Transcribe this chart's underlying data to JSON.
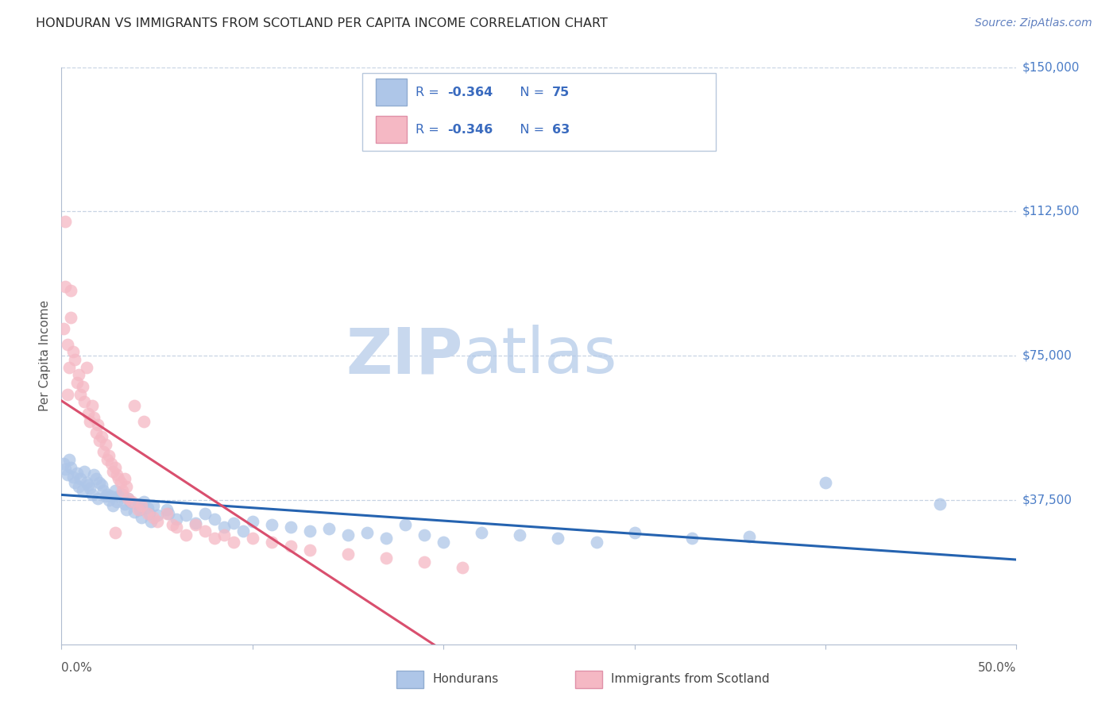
{
  "title": "HONDURAN VS IMMIGRANTS FROM SCOTLAND PER CAPITA INCOME CORRELATION CHART",
  "source": "Source: ZipAtlas.com",
  "ylabel": "Per Capita Income",
  "yticks": [
    0,
    37500,
    75000,
    112500,
    150000
  ],
  "ytick_labels": [
    "",
    "$37,500",
    "$75,000",
    "$112,500",
    "$150,000"
  ],
  "xlim": [
    0.0,
    0.5
  ],
  "ylim": [
    0,
    150000
  ],
  "blue_color": "#aec6e8",
  "pink_color": "#f5b8c4",
  "blue_line_color": "#2563b0",
  "pink_line_color": "#d94f6e",
  "watermark_color": "#dce8f5",
  "background_color": "#ffffff",
  "grid_color": "#c8d4e4",
  "title_color": "#2a2a2a",
  "axis_label_color": "#555555",
  "right_tick_color": "#4a7cc7",
  "legend_text_dark": "#333333",
  "legend_text_blue": "#3060c0",
  "legend_text_pink": "#c04060",
  "blue_scatter": [
    [
      0.001,
      47000
    ],
    [
      0.002,
      45500
    ],
    [
      0.003,
      44000
    ],
    [
      0.004,
      48000
    ],
    [
      0.005,
      46000
    ],
    [
      0.006,
      43500
    ],
    [
      0.007,
      42000
    ],
    [
      0.008,
      44500
    ],
    [
      0.009,
      41000
    ],
    [
      0.01,
      43000
    ],
    [
      0.011,
      40000
    ],
    [
      0.012,
      45000
    ],
    [
      0.013,
      42000
    ],
    [
      0.014,
      41500
    ],
    [
      0.015,
      40500
    ],
    [
      0.016,
      39000
    ],
    [
      0.017,
      44000
    ],
    [
      0.018,
      43000
    ],
    [
      0.019,
      38000
    ],
    [
      0.02,
      42000
    ],
    [
      0.021,
      41500
    ],
    [
      0.022,
      40000
    ],
    [
      0.023,
      38500
    ],
    [
      0.024,
      39000
    ],
    [
      0.025,
      37500
    ],
    [
      0.026,
      38500
    ],
    [
      0.027,
      36000
    ],
    [
      0.028,
      40000
    ],
    [
      0.029,
      37000
    ],
    [
      0.03,
      38500
    ],
    [
      0.032,
      39000
    ],
    [
      0.033,
      36500
    ],
    [
      0.034,
      35000
    ],
    [
      0.035,
      38000
    ],
    [
      0.036,
      37000
    ],
    [
      0.038,
      34500
    ],
    [
      0.04,
      36500
    ],
    [
      0.041,
      35000
    ],
    [
      0.042,
      33000
    ],
    [
      0.043,
      37000
    ],
    [
      0.045,
      35500
    ],
    [
      0.046,
      34000
    ],
    [
      0.047,
      32000
    ],
    [
      0.048,
      36000
    ],
    [
      0.05,
      33500
    ],
    [
      0.055,
      35000
    ],
    [
      0.056,
      34000
    ],
    [
      0.06,
      32500
    ],
    [
      0.065,
      33500
    ],
    [
      0.07,
      31500
    ],
    [
      0.075,
      34000
    ],
    [
      0.08,
      32500
    ],
    [
      0.085,
      30500
    ],
    [
      0.09,
      31500
    ],
    [
      0.095,
      29500
    ],
    [
      0.1,
      32000
    ],
    [
      0.11,
      31000
    ],
    [
      0.12,
      30500
    ],
    [
      0.13,
      29500
    ],
    [
      0.14,
      30000
    ],
    [
      0.15,
      28500
    ],
    [
      0.16,
      29000
    ],
    [
      0.17,
      27500
    ],
    [
      0.18,
      31000
    ],
    [
      0.19,
      28500
    ],
    [
      0.2,
      26500
    ],
    [
      0.22,
      29000
    ],
    [
      0.24,
      28500
    ],
    [
      0.26,
      27500
    ],
    [
      0.28,
      26500
    ],
    [
      0.3,
      29000
    ],
    [
      0.33,
      27500
    ],
    [
      0.36,
      28000
    ],
    [
      0.4,
      42000
    ],
    [
      0.46,
      36500
    ]
  ],
  "pink_scatter": [
    [
      0.001,
      82000
    ],
    [
      0.002,
      93000
    ],
    [
      0.003,
      78000
    ],
    [
      0.004,
      72000
    ],
    [
      0.005,
      85000
    ],
    [
      0.006,
      76000
    ],
    [
      0.007,
      74000
    ],
    [
      0.008,
      68000
    ],
    [
      0.009,
      70000
    ],
    [
      0.01,
      65000
    ],
    [
      0.011,
      67000
    ],
    [
      0.012,
      63000
    ],
    [
      0.013,
      72000
    ],
    [
      0.014,
      60000
    ],
    [
      0.015,
      58000
    ],
    [
      0.016,
      62000
    ],
    [
      0.017,
      59000
    ],
    [
      0.018,
      55000
    ],
    [
      0.019,
      57000
    ],
    [
      0.02,
      53000
    ],
    [
      0.021,
      54000
    ],
    [
      0.022,
      50000
    ],
    [
      0.023,
      52000
    ],
    [
      0.024,
      48000
    ],
    [
      0.025,
      49000
    ],
    [
      0.026,
      47000
    ],
    [
      0.027,
      45000
    ],
    [
      0.028,
      46000
    ],
    [
      0.029,
      44000
    ],
    [
      0.03,
      43000
    ],
    [
      0.031,
      42000
    ],
    [
      0.032,
      40000
    ],
    [
      0.034,
      41000
    ],
    [
      0.035,
      38000
    ],
    [
      0.037,
      37000
    ],
    [
      0.04,
      35000
    ],
    [
      0.042,
      36000
    ],
    [
      0.043,
      58000
    ],
    [
      0.045,
      34000
    ],
    [
      0.048,
      33000
    ],
    [
      0.05,
      32000
    ],
    [
      0.055,
      34000
    ],
    [
      0.058,
      31000
    ],
    [
      0.06,
      30500
    ],
    [
      0.065,
      28500
    ],
    [
      0.07,
      31000
    ],
    [
      0.075,
      29500
    ],
    [
      0.08,
      27500
    ],
    [
      0.085,
      28500
    ],
    [
      0.09,
      26500
    ],
    [
      0.1,
      27500
    ],
    [
      0.11,
      26500
    ],
    [
      0.12,
      25500
    ],
    [
      0.13,
      24500
    ],
    [
      0.15,
      23500
    ],
    [
      0.17,
      22500
    ],
    [
      0.19,
      21500
    ],
    [
      0.002,
      110000
    ],
    [
      0.005,
      92000
    ],
    [
      0.038,
      62000
    ],
    [
      0.033,
      43000
    ],
    [
      0.028,
      29000
    ],
    [
      0.21,
      20000
    ],
    [
      0.003,
      65000
    ]
  ]
}
